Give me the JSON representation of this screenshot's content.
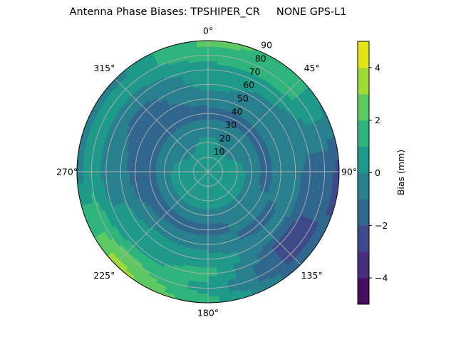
{
  "chart_data": {
    "type": "polar-contour",
    "title": "Antenna Phase Biases: TPSHIPER_CR     NONE GPS-L1",
    "angular_ticks": [
      "0°",
      "45°",
      "90°",
      "135°",
      "180°",
      "225°",
      "270°",
      "315°"
    ],
    "angular_direction": "clockwise",
    "zero_location": "north",
    "radial_ticks": [
      "10",
      "20",
      "30",
      "40",
      "50",
      "60",
      "70",
      "80",
      "90"
    ],
    "radial_range": [
      0,
      90
    ],
    "grid": true,
    "colorbar": {
      "label": "Bias (mm)",
      "levels": [
        -5,
        -4,
        -3,
        -2,
        -1,
        0,
        1,
        2,
        3,
        4,
        5
      ],
      "ticks": [
        "−4",
        "−2",
        "0",
        "2",
        "4"
      ],
      "tick_values": [
        -4,
        -2,
        0,
        2,
        4
      ],
      "colors": [
        "#46105f",
        "#482f7b",
        "#3e4a89",
        "#31678e",
        "#28808e",
        "#1f998a",
        "#2fb47c",
        "#5ec962",
        "#a0da39",
        "#e3e418"
      ],
      "colormap": "viridis"
    },
    "azimuth": [
      0,
      45,
      90,
      135,
      180,
      225,
      270,
      315
    ],
    "zenith": [
      0,
      10,
      20,
      30,
      40,
      50,
      60,
      70,
      80,
      90
    ],
    "values": [
      [
        0.5,
        0.5,
        0.5,
        -0.5,
        -1.5,
        -0.5,
        0.5,
        0.5,
        1.5,
        2.5
      ],
      [
        0.5,
        0.5,
        -0.5,
        -0.5,
        -1.5,
        -0.5,
        -0.5,
        0.5,
        1.5,
        1.5
      ],
      [
        0.5,
        0.5,
        0.5,
        -0.5,
        -1.5,
        -0.5,
        -0.5,
        -1.5,
        -1.5,
        -2.5
      ],
      [
        0.5,
        0.5,
        0.5,
        -0.5,
        -0.5,
        -1.5,
        -0.5,
        -2.5,
        -2.5,
        -1.5
      ],
      [
        0.5,
        0.5,
        0.5,
        -0.5,
        -1.5,
        -0.5,
        0.5,
        1.5,
        0.5,
        1.5
      ],
      [
        0.5,
        0.5,
        0.5,
        -0.5,
        -1.5,
        -0.5,
        0.5,
        0.5,
        2.5,
        3.5
      ],
      [
        0.5,
        0.5,
        0.5,
        -0.5,
        -1.5,
        -1.5,
        -0.5,
        -0.5,
        0.5,
        -0.5
      ],
      [
        0.5,
        0.5,
        -0.5,
        -0.5,
        -1.5,
        -1.5,
        -1.5,
        -0.5,
        0.5,
        -0.5
      ]
    ]
  }
}
